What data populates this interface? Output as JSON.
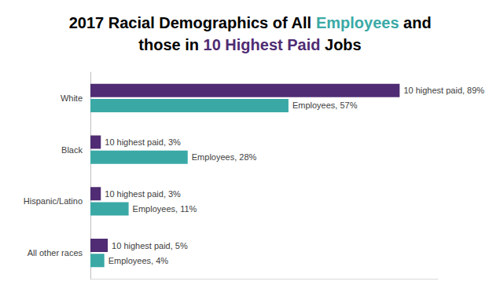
{
  "chart_data": {
    "type": "bar",
    "title": "2017 Racial Demographics of All Employees and\nthose in 10 Highest Paid Jobs",
    "orientation": "horizontal",
    "categories": [
      "White",
      "Black",
      "Hispanic/Latino",
      "All other races"
    ],
    "series": [
      {
        "name": "10 highest paid",
        "color": "#4f2c73",
        "values": [
          89,
          3,
          3,
          5
        ],
        "value_labels": [
          "10 highest paid, 89%",
          "10 highest paid, 3%",
          "10 highest paid, 3%",
          "10 highest paid, 5%"
        ]
      },
      {
        "name": "Employees",
        "color": "#3aa9a6",
        "values": [
          57,
          28,
          11,
          4
        ],
        "value_labels": [
          "Employees, 57%",
          "Employees, 28%",
          "Employees, 11%",
          "Employees, 4%"
        ]
      }
    ],
    "xlim": [
      0,
      100
    ],
    "xticks": [
      0,
      100
    ],
    "grid": false,
    "data_labels": true,
    "tick_labels": "y"
  }
}
